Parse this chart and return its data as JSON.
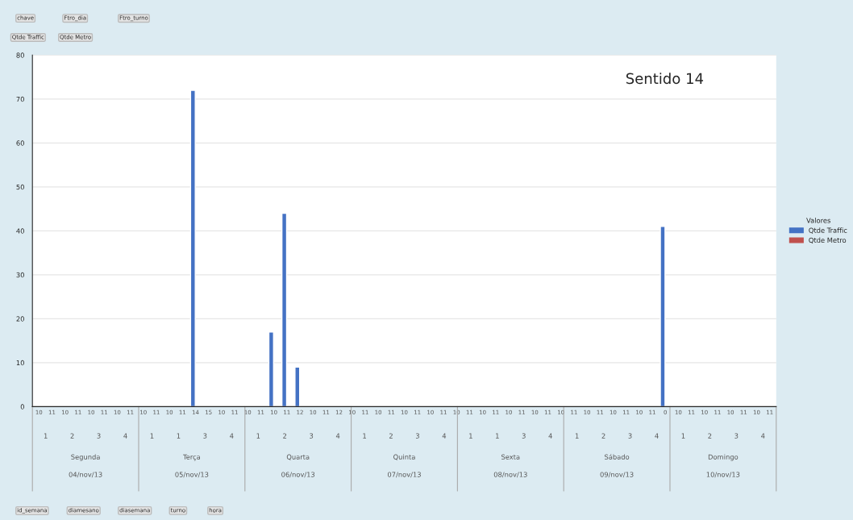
{
  "chart_data": {
    "type": "bar",
    "title": "Sentido 14",
    "legend_title": "Valores",
    "legend": "right",
    "grid": "y",
    "categories": [
      "10",
      "11",
      "10",
      "11",
      "10",
      "11",
      "10",
      "11",
      "10",
      "11",
      "10",
      "11",
      "14",
      "15",
      "10",
      "11",
      "10",
      "11",
      "10",
      "11",
      "12",
      "10",
      "11",
      "12",
      "10",
      "11",
      "10",
      "11",
      "10",
      "11",
      "10",
      "11",
      "10",
      "11",
      "10",
      "11",
      "10",
      "11",
      "10",
      "11",
      "10",
      "11",
      "10",
      "11",
      "10",
      "11",
      "10",
      "11",
      "0",
      "10",
      "11",
      "10",
      "11",
      "10",
      "11",
      "10",
      "11"
    ],
    "series": [
      {
        "name": "Qtde Traffic",
        "color": "#4472c4",
        "values": [
          null,
          null,
          null,
          null,
          null,
          null,
          null,
          null,
          null,
          null,
          null,
          null,
          72,
          null,
          null,
          null,
          null,
          null,
          17,
          44,
          9,
          null,
          null,
          null,
          null,
          null,
          null,
          null,
          null,
          null,
          null,
          null,
          null,
          null,
          null,
          null,
          null,
          null,
          null,
          null,
          null,
          null,
          null,
          null,
          null,
          null,
          null,
          null,
          41,
          null,
          null,
          null,
          null,
          null,
          null,
          null,
          null
        ]
      },
      {
        "name": "Qtde Metro",
        "color": "#c0504d",
        "values": [
          null,
          null,
          null,
          null,
          null,
          null,
          null,
          null,
          null,
          null,
          null,
          null,
          null,
          null,
          null,
          null,
          null,
          null,
          null,
          null,
          null,
          null,
          null,
          null,
          null,
          null,
          null,
          null,
          null,
          null,
          null,
          null,
          null,
          null,
          null,
          null,
          null,
          null,
          null,
          null,
          null,
          null,
          null,
          null,
          null,
          null,
          null,
          null,
          null,
          null,
          null,
          null,
          null,
          null,
          null,
          null,
          null
        ]
      }
    ],
    "ylim": [
      0,
      80
    ],
    "yticks": [
      0,
      10,
      20,
      30,
      40,
      50,
      60,
      70,
      80
    ],
    "annotations": [
      "1",
      "2",
      "3",
      "4",
      "1",
      "1",
      "3",
      "4",
      "1",
      "2",
      "3",
      "4",
      "1",
      "2",
      "3",
      "4",
      "1",
      "1",
      "3",
      "4",
      "1",
      "2",
      "3",
      "4",
      "1",
      "2",
      "3",
      "4",
      "Segunda",
      "Terça",
      "Quarta",
      "Quinta",
      "Sexta",
      "Sábado",
      "Domingo",
      "04/nov/13",
      "05/nov/13",
      "06/nov/13",
      "07/nov/13",
      "08/nov/13",
      "09/nov/13",
      "10/nov/13",
      "chave",
      "Ftro_dia",
      "Ftro_turno",
      "Qtde Traffic",
      "Qtde Metro",
      "id_semana",
      "diamesano",
      "diasemana",
      "turno",
      "hora"
    ]
  }
}
